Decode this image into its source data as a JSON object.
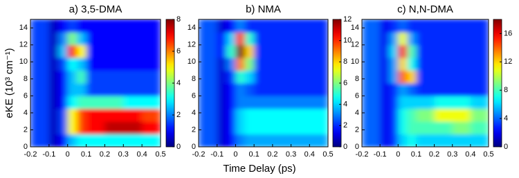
{
  "chart_data": [
    {
      "type": "heatmap",
      "title": "a) 3,5-DMA",
      "ylabel": "eKE (10³ cm⁻¹)",
      "colormap": "jet",
      "xlim": [
        -0.2,
        0.5
      ],
      "xticks": [
        -0.2,
        -0.1,
        0,
        0.1,
        0.2,
        0.3,
        0.4,
        0.5
      ],
      "ylim": [
        0,
        15
      ],
      "yticks": [
        0,
        2,
        4,
        6,
        8,
        10,
        12,
        14
      ],
      "zlim": [
        0,
        8
      ],
      "zticks": [
        0,
        2,
        4,
        6,
        8
      ],
      "xbins": [
        -0.2,
        -0.1,
        -0.05,
        0,
        0.05,
        0.1,
        0.2,
        0.3,
        0.4,
        0.5
      ],
      "ybins": [
        0,
        1.5,
        3,
        4.5,
        6,
        7.5,
        9,
        10.5,
        12,
        13.5,
        15
      ],
      "z": [
        [
          1.5,
          0.5,
          1,
          2.5,
          3,
          3,
          3,
          3,
          3
        ],
        [
          1.5,
          0.5,
          1.5,
          5,
          6.5,
          7,
          7.5,
          7.5,
          7
        ],
        [
          1.5,
          0.5,
          1.5,
          5,
          6.5,
          7,
          7,
          7,
          6.5
        ],
        [
          1.5,
          0.5,
          1,
          3,
          3.5,
          3.5,
          3.5,
          3,
          3
        ],
        [
          1.5,
          0.5,
          1,
          2.5,
          2.5,
          1.5,
          1.5,
          1.5,
          1.5
        ],
        [
          1.5,
          0.5,
          1,
          2.5,
          3.5,
          1.5,
          1.5,
          1.5,
          1.5
        ],
        [
          1.5,
          0.5,
          1.5,
          3,
          2.5,
          1,
          1,
          1,
          1
        ],
        [
          1.5,
          0.5,
          2.5,
          7,
          5,
          1,
          1,
          1,
          1
        ],
        [
          1.5,
          0.5,
          2,
          4,
          2.5,
          1,
          1,
          1,
          1
        ],
        [
          1.5,
          0.5,
          1,
          1.5,
          1,
          1,
          1,
          1,
          1
        ]
      ]
    },
    {
      "type": "heatmap",
      "title": "b) NMA",
      "xlabel": "Time Delay (ps)",
      "colormap": "jet",
      "xlim": [
        -0.2,
        0.5
      ],
      "xticks": [
        -0.2,
        -0.1,
        0,
        0.1,
        0.2,
        0.3,
        0.4,
        0.5
      ],
      "ylim": [
        0,
        15
      ],
      "yticks": [
        0,
        2,
        4,
        6,
        8,
        10,
        12,
        14
      ],
      "zlim": [
        0,
        12
      ],
      "zticks": [
        0,
        2,
        4,
        6,
        8,
        10,
        12
      ],
      "xbins": [
        -0.2,
        -0.1,
        -0.05,
        0,
        0.05,
        0.1,
        0.2,
        0.3,
        0.4,
        0.5
      ],
      "ybins": [
        0,
        1.5,
        3,
        4.5,
        6,
        7.5,
        9,
        10.5,
        12,
        13.5,
        15
      ],
      "z": [
        [
          2.5,
          1,
          1.5,
          3,
          3.5,
          3.5,
          3.5,
          3.5,
          3.5
        ],
        [
          2.5,
          1,
          1.5,
          4,
          4.5,
          4.5,
          4.5,
          4.5,
          4.5
        ],
        [
          2.5,
          1,
          1.5,
          4,
          4.5,
          4.5,
          4.5,
          4.5,
          4.5
        ],
        [
          2.5,
          1,
          1.5,
          3,
          3,
          3,
          3,
          3,
          3
        ],
        [
          2.5,
          1,
          1.5,
          3,
          2.5,
          2,
          2,
          2,
          2
        ],
        [
          2.5,
          1,
          2,
          5,
          4,
          2,
          2,
          2,
          2
        ],
        [
          2.5,
          1,
          3,
          9,
          6,
          2,
          2,
          2,
          2
        ],
        [
          2.5,
          1.5,
          5,
          12,
          8,
          2,
          2,
          2,
          2
        ],
        [
          2.5,
          1.5,
          4,
          10,
          5,
          2,
          2,
          2,
          2
        ],
        [
          2.5,
          1,
          1.5,
          3,
          2,
          2,
          2,
          2,
          2
        ]
      ]
    },
    {
      "type": "heatmap",
      "title": "c) N,N-DMA",
      "colormap": "jet",
      "xlim": [
        -0.2,
        0.5
      ],
      "xticks": [
        -0.2,
        -0.1,
        0,
        0.1,
        0.2,
        0.3,
        0.4,
        0.5
      ],
      "ylim": [
        0,
        15
      ],
      "yticks": [
        0,
        2,
        4,
        6,
        8,
        10,
        12,
        14
      ],
      "zlim": [
        0,
        18
      ],
      "zticks": [
        0,
        4,
        8,
        12,
        16
      ],
      "xbins": [
        -0.2,
        -0.1,
        -0.05,
        0,
        0.05,
        0.1,
        0.2,
        0.3,
        0.4,
        0.5
      ],
      "ybins": [
        0,
        1.5,
        3,
        4.5,
        6,
        7.5,
        9,
        10.5,
        12,
        13.5,
        15
      ],
      "z": [
        [
          4,
          2,
          3,
          6,
          7,
          6,
          6,
          6,
          6
        ],
        [
          4,
          2,
          3,
          7,
          8,
          8,
          8,
          9,
          8
        ],
        [
          4,
          2,
          3,
          7,
          8,
          9,
          11,
          11,
          9
        ],
        [
          4,
          2,
          3,
          6,
          6,
          6,
          7,
          7,
          6
        ],
        [
          4,
          2,
          3,
          5,
          4,
          3,
          3,
          3,
          3
        ],
        [
          4,
          2,
          5,
          14,
          12,
          3,
          3,
          3,
          3
        ],
        [
          4,
          2,
          5,
          12,
          7,
          3,
          3,
          3,
          3
        ],
        [
          4,
          2,
          6,
          15,
          8,
          3,
          3,
          3,
          3
        ],
        [
          4,
          2,
          5,
          11,
          5,
          3,
          3,
          3,
          3
        ],
        [
          4,
          2,
          3,
          4,
          3,
          3,
          3,
          3,
          3
        ]
      ]
    }
  ]
}
